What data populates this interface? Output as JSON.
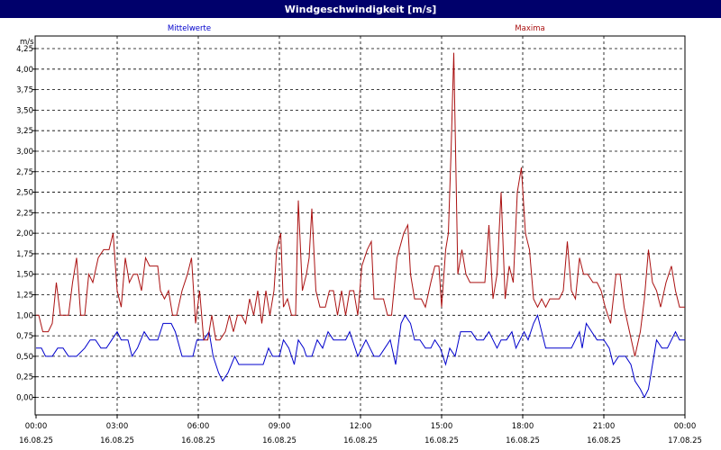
{
  "window": {
    "title": "Windgeschwindigkeit [m/s]"
  },
  "chart_data": {
    "type": "line",
    "title": "Windgeschwindigkeit [m/s]",
    "ylabel": "m/s",
    "ylim": [
      -0.25,
      4.35
    ],
    "yticks": [
      0.0,
      0.25,
      0.5,
      0.75,
      1.0,
      1.25,
      1.5,
      1.75,
      2.0,
      2.25,
      2.5,
      2.75,
      3.0,
      3.25,
      3.5,
      3.75,
      4.0,
      4.25
    ],
    "ytick_labels": [
      "0,00",
      "0,25",
      "0,50",
      "0,75",
      "1,00",
      "1,25",
      "1,50",
      "1,75",
      "2,00",
      "2,25",
      "2,50",
      "2,75",
      "3,00",
      "3,25",
      "3,50",
      "3,75",
      "4,00",
      "4,25"
    ],
    "xlim": [
      0,
      24
    ],
    "xticks": [
      0,
      3,
      6,
      9,
      12,
      15,
      18,
      21,
      24
    ],
    "xtick_labels": [
      {
        "time": "00:00",
        "date": "16.08.25"
      },
      {
        "time": "03:00",
        "date": "16.08.25"
      },
      {
        "time": "06:00",
        "date": "16.08.25"
      },
      {
        "time": "09:00",
        "date": "16.08.25"
      },
      {
        "time": "12:00",
        "date": "16.08.25"
      },
      {
        "time": "15:00",
        "date": "16.08.25"
      },
      {
        "time": "18:00",
        "date": "16.08.25"
      },
      {
        "time": "21:00",
        "date": "16.08.25"
      },
      {
        "time": "00:00",
        "date": "17.08.25"
      }
    ],
    "grid": true,
    "series": [
      {
        "name": "Mittelwerte",
        "color": "#0000cc",
        "points": [
          [
            0.0,
            0.6
          ],
          [
            0.2,
            0.6
          ],
          [
            0.35,
            0.5
          ],
          [
            0.6,
            0.5
          ],
          [
            0.8,
            0.6
          ],
          [
            1.0,
            0.6
          ],
          [
            1.2,
            0.5
          ],
          [
            1.5,
            0.5
          ],
          [
            1.8,
            0.6
          ],
          [
            2.0,
            0.7
          ],
          [
            2.2,
            0.7
          ],
          [
            2.4,
            0.6
          ],
          [
            2.6,
            0.6
          ],
          [
            2.8,
            0.7
          ],
          [
            3.0,
            0.8
          ],
          [
            3.15,
            0.7
          ],
          [
            3.4,
            0.7
          ],
          [
            3.55,
            0.5
          ],
          [
            3.75,
            0.6
          ],
          [
            4.0,
            0.8
          ],
          [
            4.2,
            0.7
          ],
          [
            4.5,
            0.7
          ],
          [
            4.7,
            0.9
          ],
          [
            5.0,
            0.9
          ],
          [
            5.15,
            0.8
          ],
          [
            5.4,
            0.5
          ],
          [
            5.6,
            0.5
          ],
          [
            5.8,
            0.5
          ],
          [
            5.95,
            0.7
          ],
          [
            6.2,
            0.7
          ],
          [
            6.4,
            0.8
          ],
          [
            6.55,
            0.5
          ],
          [
            6.75,
            0.3
          ],
          [
            6.9,
            0.2
          ],
          [
            7.1,
            0.3
          ],
          [
            7.35,
            0.5
          ],
          [
            7.5,
            0.4
          ],
          [
            7.8,
            0.4
          ],
          [
            8.1,
            0.4
          ],
          [
            8.4,
            0.4
          ],
          [
            8.6,
            0.6
          ],
          [
            8.75,
            0.5
          ],
          [
            9.0,
            0.5
          ],
          [
            9.15,
            0.7
          ],
          [
            9.35,
            0.6
          ],
          [
            9.55,
            0.4
          ],
          [
            9.7,
            0.7
          ],
          [
            9.9,
            0.6
          ],
          [
            10.0,
            0.5
          ],
          [
            10.2,
            0.5
          ],
          [
            10.4,
            0.7
          ],
          [
            10.6,
            0.6
          ],
          [
            10.8,
            0.8
          ],
          [
            11.0,
            0.7
          ],
          [
            11.2,
            0.7
          ],
          [
            11.45,
            0.7
          ],
          [
            11.6,
            0.8
          ],
          [
            11.8,
            0.6
          ],
          [
            11.9,
            0.5
          ],
          [
            12.2,
            0.7
          ],
          [
            12.35,
            0.6
          ],
          [
            12.5,
            0.5
          ],
          [
            12.7,
            0.5
          ],
          [
            12.9,
            0.6
          ],
          [
            13.1,
            0.7
          ],
          [
            13.3,
            0.4
          ],
          [
            13.5,
            0.9
          ],
          [
            13.65,
            1.0
          ],
          [
            13.85,
            0.9
          ],
          [
            14.0,
            0.7
          ],
          [
            14.2,
            0.7
          ],
          [
            14.4,
            0.6
          ],
          [
            14.6,
            0.6
          ],
          [
            14.75,
            0.7
          ],
          [
            14.95,
            0.6
          ],
          [
            15.15,
            0.4
          ],
          [
            15.3,
            0.6
          ],
          [
            15.5,
            0.5
          ],
          [
            15.7,
            0.8
          ],
          [
            15.9,
            0.8
          ],
          [
            16.1,
            0.8
          ],
          [
            16.3,
            0.7
          ],
          [
            16.55,
            0.7
          ],
          [
            16.75,
            0.8
          ],
          [
            16.9,
            0.7
          ],
          [
            17.05,
            0.6
          ],
          [
            17.2,
            0.7
          ],
          [
            17.4,
            0.7
          ],
          [
            17.6,
            0.8
          ],
          [
            17.75,
            0.6
          ],
          [
            17.9,
            0.7
          ],
          [
            18.05,
            0.8
          ],
          [
            18.2,
            0.7
          ],
          [
            18.4,
            0.9
          ],
          [
            18.55,
            1.0
          ],
          [
            18.7,
            0.8
          ],
          [
            18.85,
            0.6
          ],
          [
            19.1,
            0.6
          ],
          [
            19.4,
            0.6
          ],
          [
            19.6,
            0.6
          ],
          [
            19.8,
            0.6
          ],
          [
            19.95,
            0.7
          ],
          [
            20.1,
            0.8
          ],
          [
            20.2,
            0.6
          ],
          [
            20.35,
            0.9
          ],
          [
            20.55,
            0.8
          ],
          [
            20.75,
            0.7
          ],
          [
            21.0,
            0.7
          ],
          [
            21.2,
            0.6
          ],
          [
            21.35,
            0.4
          ],
          [
            21.55,
            0.5
          ],
          [
            21.8,
            0.5
          ],
          [
            22.0,
            0.4
          ],
          [
            22.15,
            0.2
          ],
          [
            22.35,
            0.1
          ],
          [
            22.5,
            0.0
          ],
          [
            22.65,
            0.1
          ],
          [
            22.8,
            0.4
          ],
          [
            22.95,
            0.7
          ],
          [
            23.15,
            0.6
          ],
          [
            23.35,
            0.6
          ],
          [
            23.5,
            0.7
          ],
          [
            23.65,
            0.8
          ],
          [
            23.8,
            0.7
          ],
          [
            24.0,
            0.7
          ]
        ]
      },
      {
        "name": "Maxima",
        "color": "#aa1111",
        "points": [
          [
            0.0,
            1.0
          ],
          [
            0.1,
            1.0
          ],
          [
            0.25,
            0.8
          ],
          [
            0.45,
            0.8
          ],
          [
            0.6,
            0.9
          ],
          [
            0.75,
            1.4
          ],
          [
            0.9,
            1.0
          ],
          [
            1.05,
            1.0
          ],
          [
            1.2,
            1.0
          ],
          [
            1.35,
            1.4
          ],
          [
            1.5,
            1.7
          ],
          [
            1.65,
            1.0
          ],
          [
            1.8,
            1.0
          ],
          [
            1.95,
            1.5
          ],
          [
            2.1,
            1.4
          ],
          [
            2.3,
            1.7
          ],
          [
            2.5,
            1.8
          ],
          [
            2.7,
            1.8
          ],
          [
            2.85,
            2.0
          ],
          [
            3.0,
            1.3
          ],
          [
            3.15,
            1.1
          ],
          [
            3.3,
            1.7
          ],
          [
            3.45,
            1.4
          ],
          [
            3.6,
            1.5
          ],
          [
            3.75,
            1.5
          ],
          [
            3.9,
            1.3
          ],
          [
            4.05,
            1.7
          ],
          [
            4.2,
            1.6
          ],
          [
            4.5,
            1.6
          ],
          [
            4.6,
            1.3
          ],
          [
            4.75,
            1.2
          ],
          [
            4.9,
            1.3
          ],
          [
            5.05,
            1.0
          ],
          [
            5.2,
            1.0
          ],
          [
            5.4,
            1.3
          ],
          [
            5.6,
            1.5
          ],
          [
            5.75,
            1.7
          ],
          [
            5.9,
            0.9
          ],
          [
            6.05,
            1.3
          ],
          [
            6.2,
            0.7
          ],
          [
            6.35,
            0.7
          ],
          [
            6.5,
            1.0
          ],
          [
            6.65,
            0.7
          ],
          [
            6.8,
            0.7
          ],
          [
            7.0,
            0.8
          ],
          [
            7.15,
            1.0
          ],
          [
            7.3,
            0.8
          ],
          [
            7.45,
            1.0
          ],
          [
            7.6,
            1.0
          ],
          [
            7.75,
            0.9
          ],
          [
            7.9,
            1.2
          ],
          [
            8.05,
            1.0
          ],
          [
            8.2,
            1.3
          ],
          [
            8.35,
            0.9
          ],
          [
            8.5,
            1.3
          ],
          [
            8.65,
            1.0
          ],
          [
            8.8,
            1.3
          ],
          [
            8.9,
            1.8
          ],
          [
            9.05,
            2.0
          ],
          [
            9.15,
            1.1
          ],
          [
            9.3,
            1.2
          ],
          [
            9.45,
            1.0
          ],
          [
            9.6,
            1.0
          ],
          [
            9.7,
            2.4
          ],
          [
            9.85,
            1.3
          ],
          [
            10.0,
            1.5
          ],
          [
            10.1,
            1.7
          ],
          [
            10.2,
            2.3
          ],
          [
            10.35,
            1.3
          ],
          [
            10.5,
            1.1
          ],
          [
            10.7,
            1.1
          ],
          [
            10.85,
            1.3
          ],
          [
            11.0,
            1.3
          ],
          [
            11.15,
            1.0
          ],
          [
            11.3,
            1.3
          ],
          [
            11.45,
            1.0
          ],
          [
            11.6,
            1.3
          ],
          [
            11.75,
            1.3
          ],
          [
            11.9,
            1.0
          ],
          [
            12.05,
            1.6
          ],
          [
            12.25,
            1.8
          ],
          [
            12.4,
            1.9
          ],
          [
            12.5,
            1.2
          ],
          [
            12.7,
            1.2
          ],
          [
            12.85,
            1.2
          ],
          [
            13.0,
            1.0
          ],
          [
            13.15,
            1.0
          ],
          [
            13.35,
            1.7
          ],
          [
            13.6,
            2.0
          ],
          [
            13.75,
            2.1
          ],
          [
            13.85,
            1.5
          ],
          [
            14.0,
            1.2
          ],
          [
            14.25,
            1.2
          ],
          [
            14.4,
            1.1
          ],
          [
            14.6,
            1.4
          ],
          [
            14.75,
            1.6
          ],
          [
            14.9,
            1.6
          ],
          [
            15.0,
            1.1
          ],
          [
            15.15,
            1.8
          ],
          [
            15.25,
            2.0
          ],
          [
            15.35,
            3.0
          ],
          [
            15.45,
            4.2
          ],
          [
            15.6,
            1.5
          ],
          [
            15.75,
            1.8
          ],
          [
            15.9,
            1.5
          ],
          [
            16.05,
            1.4
          ],
          [
            16.25,
            1.4
          ],
          [
            16.45,
            1.4
          ],
          [
            16.6,
            1.4
          ],
          [
            16.75,
            2.1
          ],
          [
            16.9,
            1.2
          ],
          [
            17.05,
            1.5
          ],
          [
            17.2,
            2.5
          ],
          [
            17.35,
            1.2
          ],
          [
            17.5,
            1.6
          ],
          [
            17.65,
            1.4
          ],
          [
            17.8,
            2.5
          ],
          [
            17.95,
            2.8
          ],
          [
            18.1,
            2.0
          ],
          [
            18.25,
            1.8
          ],
          [
            18.4,
            1.2
          ],
          [
            18.55,
            1.1
          ],
          [
            18.7,
            1.2
          ],
          [
            18.85,
            1.1
          ],
          [
            19.0,
            1.2
          ],
          [
            19.2,
            1.2
          ],
          [
            19.35,
            1.2
          ],
          [
            19.5,
            1.3
          ],
          [
            19.65,
            1.9
          ],
          [
            19.8,
            1.3
          ],
          [
            19.95,
            1.2
          ],
          [
            20.1,
            1.7
          ],
          [
            20.25,
            1.5
          ],
          [
            20.4,
            1.5
          ],
          [
            20.6,
            1.4
          ],
          [
            20.75,
            1.4
          ],
          [
            20.9,
            1.3
          ],
          [
            21.05,
            1.1
          ],
          [
            21.25,
            0.9
          ],
          [
            21.45,
            1.5
          ],
          [
            21.6,
            1.5
          ],
          [
            21.75,
            1.1
          ],
          [
            21.95,
            0.8
          ],
          [
            22.15,
            0.5
          ],
          [
            22.35,
            0.8
          ],
          [
            22.5,
            1.2
          ],
          [
            22.65,
            1.8
          ],
          [
            22.8,
            1.4
          ],
          [
            22.95,
            1.3
          ],
          [
            23.1,
            1.1
          ],
          [
            23.3,
            1.4
          ],
          [
            23.5,
            1.6
          ],
          [
            23.65,
            1.3
          ],
          [
            23.8,
            1.1
          ],
          [
            24.0,
            1.1
          ]
        ]
      }
    ]
  }
}
